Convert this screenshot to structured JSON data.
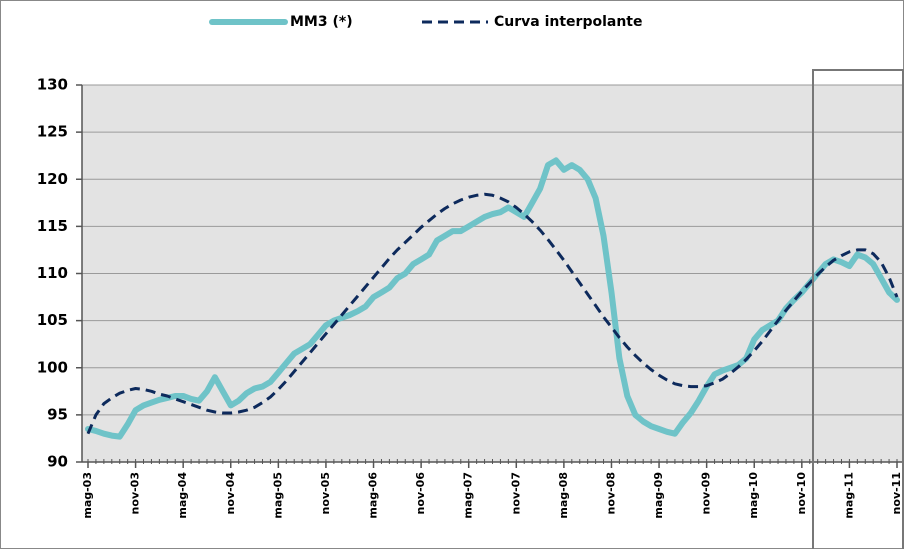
{
  "chart_data": {
    "type": "line",
    "categories": [
      "mag-03",
      null,
      null,
      null,
      null,
      null,
      "nov-03",
      null,
      null,
      null,
      null,
      null,
      "mag-04",
      null,
      null,
      null,
      null,
      null,
      "nov-04",
      null,
      null,
      null,
      null,
      null,
      "mag-05",
      null,
      null,
      null,
      null,
      null,
      "nov-05",
      null,
      null,
      null,
      null,
      null,
      "mag-06",
      null,
      null,
      null,
      null,
      null,
      "nov-06",
      null,
      null,
      null,
      null,
      null,
      "mag-07",
      null,
      null,
      null,
      null,
      null,
      "nov-07",
      null,
      null,
      null,
      null,
      null,
      "mag-08",
      null,
      null,
      null,
      null,
      null,
      "nov-08",
      null,
      null,
      null,
      null,
      null,
      "mag-09",
      null,
      null,
      null,
      null,
      null,
      "nov-09",
      null,
      null,
      null,
      null,
      null,
      "mag-10",
      null,
      null,
      null,
      null,
      null,
      "nov-10",
      null,
      null,
      null,
      null,
      null,
      "mag-11",
      null,
      null,
      null,
      null,
      null,
      "nov-11"
    ],
    "series": [
      {
        "name": "MM3 (*)",
        "color": "#6fc3c8",
        "style": "solid",
        "values": [
          93.5,
          93.3,
          93,
          92.8,
          92.7,
          94,
          95.5,
          96,
          96.3,
          96.6,
          96.8,
          97,
          97,
          96.7,
          96.5,
          97.5,
          99,
          97.5,
          96,
          96.5,
          97.3,
          97.8,
          98,
          98.5,
          99.5,
          100.5,
          101.5,
          102,
          102.5,
          103.5,
          104.5,
          105,
          105.3,
          105.6,
          106,
          106.5,
          107.5,
          108,
          108.5,
          109.5,
          110,
          111,
          111.5,
          112,
          113.5,
          114,
          114.5,
          114.5,
          115,
          115.5,
          116,
          116.3,
          116.5,
          117,
          116.5,
          116,
          117.5,
          119,
          121.5,
          122,
          121,
          121.5,
          121,
          120,
          118,
          114,
          108,
          101,
          97,
          95,
          94.3,
          93.8,
          93.5,
          93.2,
          93,
          94.2,
          95.2,
          96.5,
          98,
          99.3,
          99.7,
          100,
          100.3,
          101,
          103,
          104,
          104.5,
          105,
          106.3,
          107.2,
          108,
          109,
          110,
          111,
          111.5,
          111.2,
          110.8,
          112,
          111.7,
          111,
          109.5,
          108,
          107.2
        ]
      },
      {
        "name": "Curva interpolante",
        "color": "#0d2a5c",
        "style": "dashed",
        "values": [
          93,
          95,
          96.2,
          96.8,
          97.3,
          97.6,
          97.8,
          97.7,
          97.5,
          97.2,
          97,
          96.7,
          96.4,
          96.1,
          95.8,
          95.5,
          95.3,
          95.2,
          95.2,
          95.3,
          95.5,
          95.8,
          96.3,
          96.9,
          97.7,
          98.6,
          99.6,
          100.6,
          101.6,
          102.6,
          103.6,
          104.6,
          105.6,
          106.6,
          107.6,
          108.6,
          109.6,
          110.6,
          111.6,
          112.5,
          113.3,
          114.1,
          114.9,
          115.6,
          116.3,
          116.9,
          117.4,
          117.8,
          118.1,
          118.3,
          118.4,
          118.3,
          118,
          117.6,
          117,
          116.3,
          115.5,
          114.6,
          113.6,
          112.5,
          111.4,
          110.2,
          109,
          107.8,
          106.6,
          105.4,
          104.3,
          103.2,
          102.2,
          101.3,
          100.5,
          99.8,
          99.2,
          98.7,
          98.3,
          98.1,
          98,
          98,
          98.1,
          98.4,
          98.8,
          99.4,
          100.1,
          100.9,
          101.8,
          102.8,
          103.9,
          105,
          106.1,
          107.1,
          108.1,
          109,
          109.9,
          110.7,
          111.4,
          111.9,
          112.3,
          112.5,
          112.5,
          112.1,
          111.2,
          109.6,
          107.5
        ]
      }
    ],
    "ylim": [
      90,
      130
    ],
    "yticks": [
      90,
      95,
      100,
      105,
      110,
      115,
      120,
      125,
      130
    ],
    "grid": true,
    "legend": "top"
  }
}
